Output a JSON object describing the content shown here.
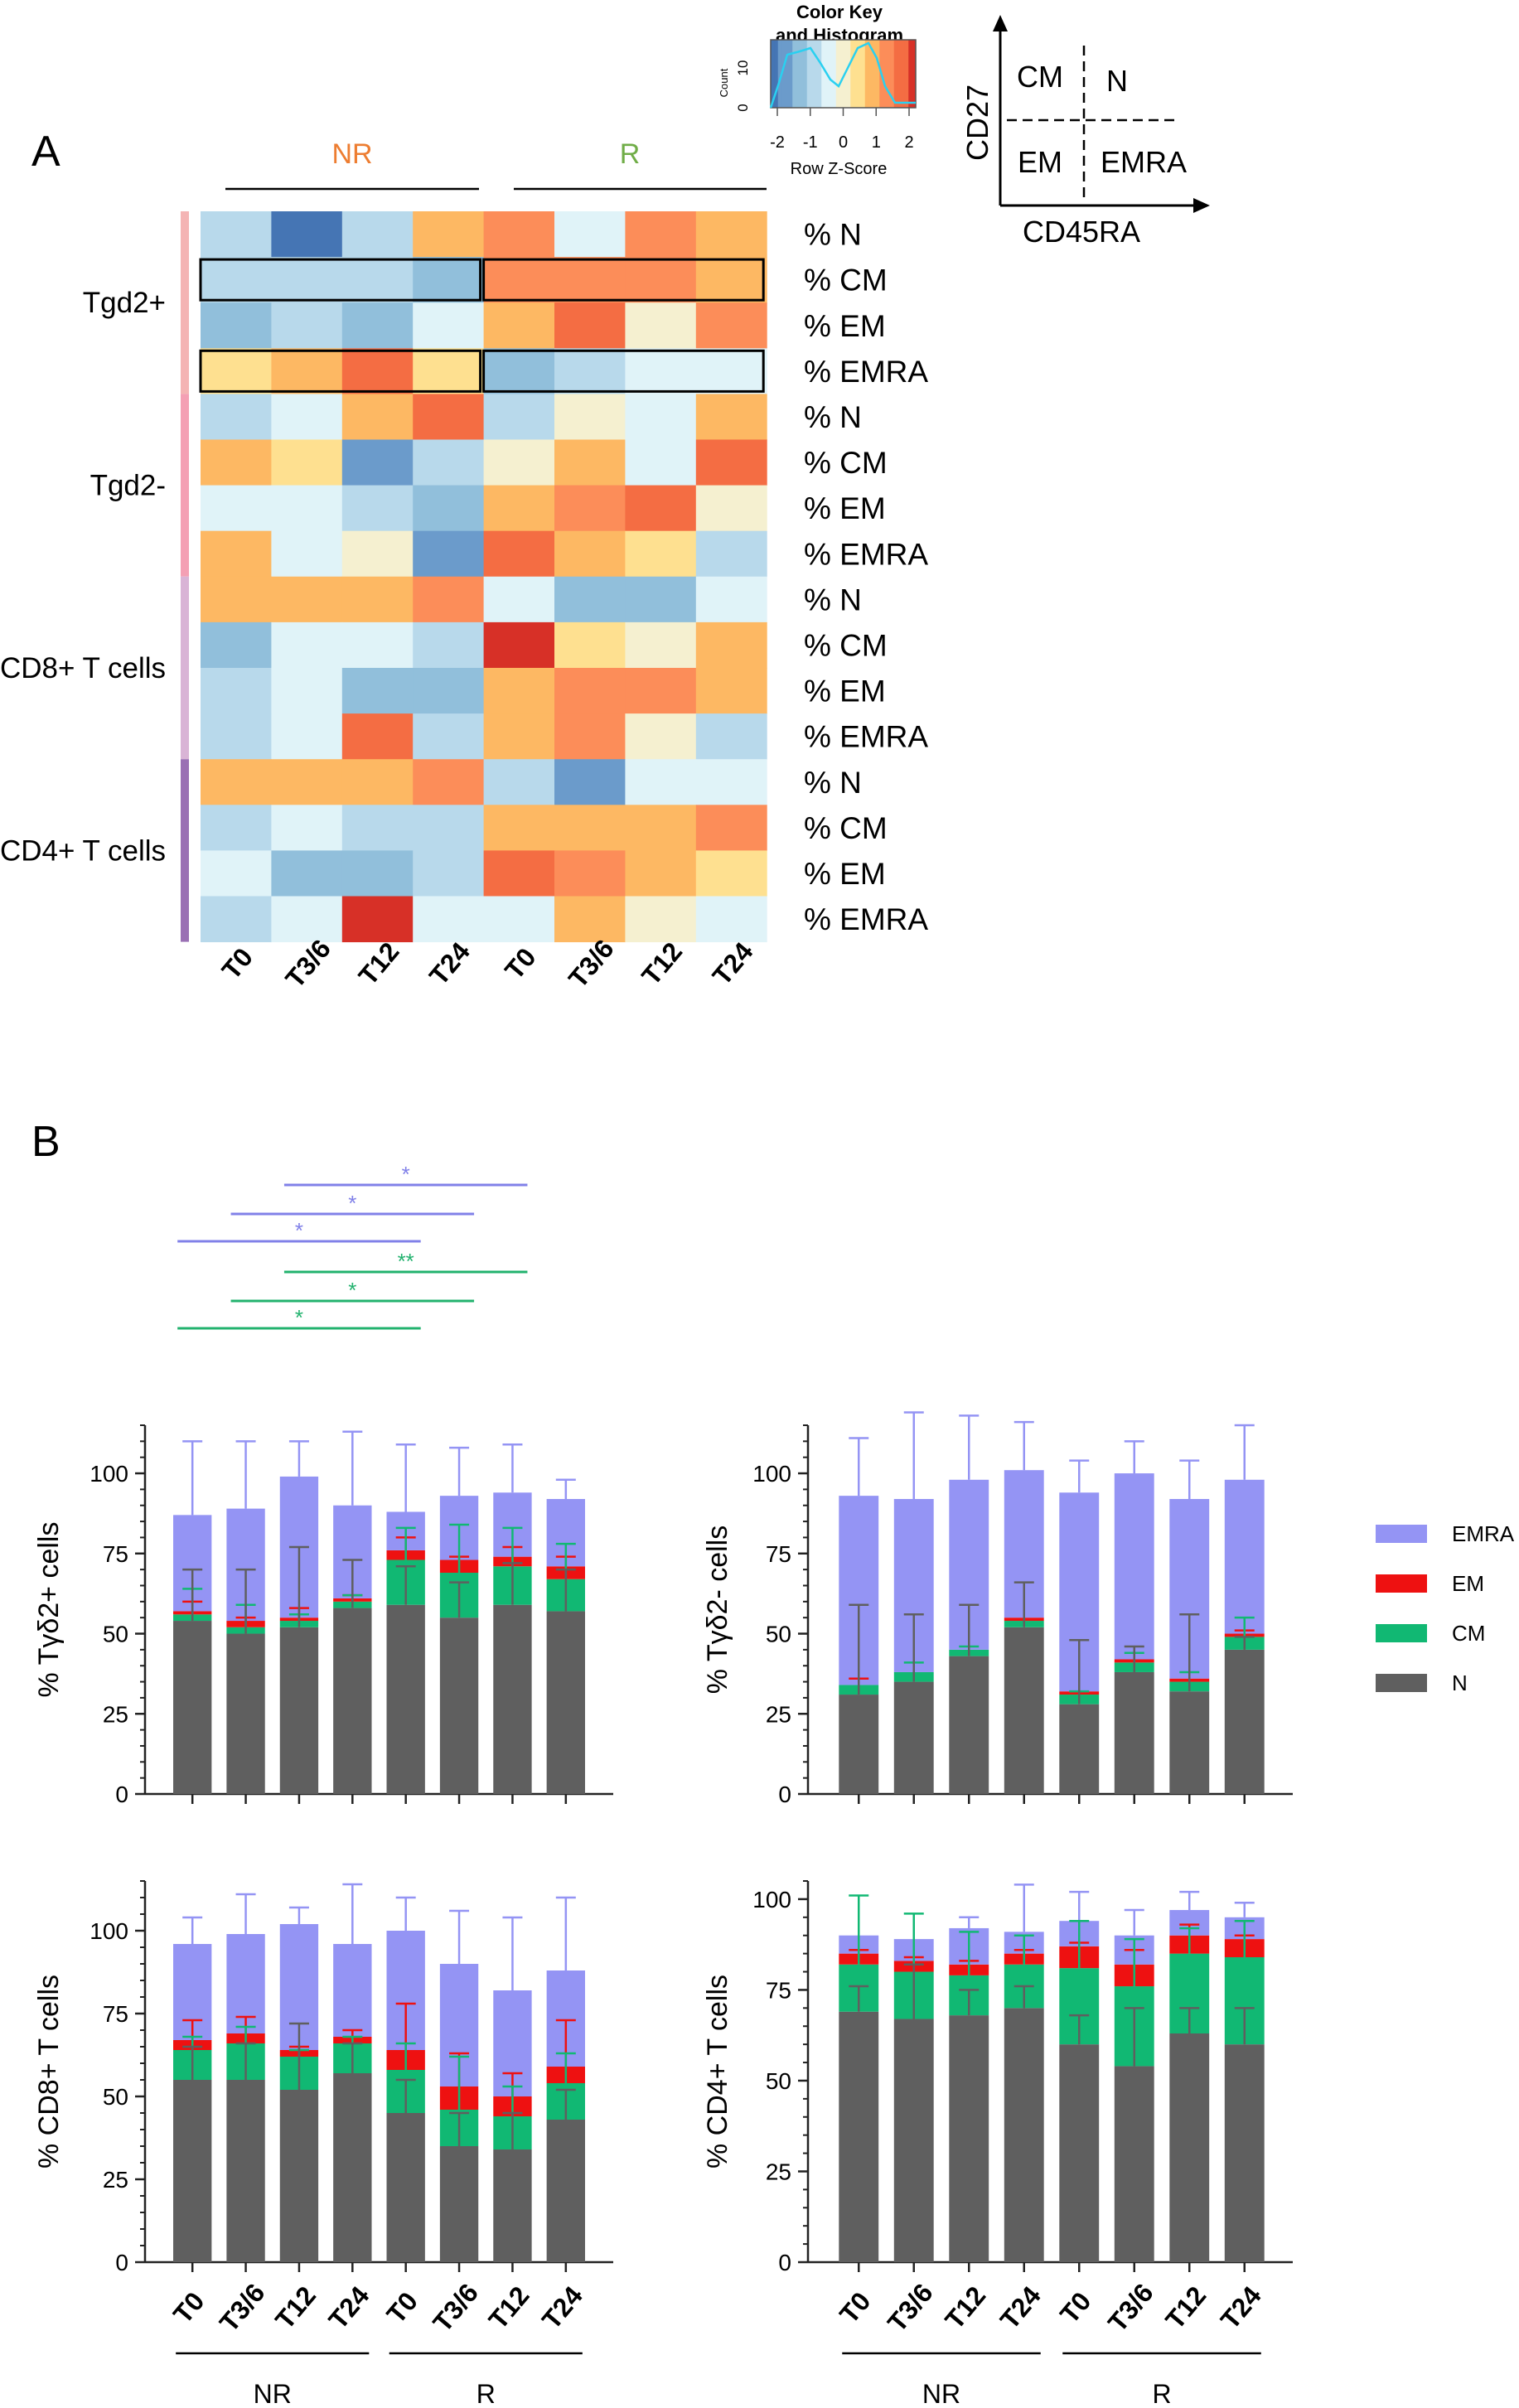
{
  "panel_labels": {
    "a": "A",
    "b": "B"
  },
  "colors": {
    "heat_scale": [
      "#4575b4",
      "#6b9bcb",
      "#91bfdb",
      "#b8d9eb",
      "#e0f3f8",
      "#f5f0d0",
      "#fee090",
      "#fdb863",
      "#fc8d59",
      "#f46d43",
      "#d73027"
    ],
    "EMRA": "#9494f4",
    "EM": "#ee1111",
    "CM": "#11b873",
    "N": "#5f5f5f",
    "nr_label": "#ed7d31",
    "r_label": "#70ad47",
    "sig_emra": "#8080e8",
    "sig_cm": "#22b26e"
  },
  "color_key": {
    "title_line1": "Color Key",
    "title_line2": "and Histogram",
    "count_label": "Count",
    "count_ticks": [
      "0",
      "10"
    ],
    "xlabel": "Row Z-Score",
    "xticks": [
      "-2",
      "-1",
      "0",
      "1",
      "2"
    ]
  },
  "quadrant": {
    "y_axis": "CD27",
    "x_axis": "CD45RA",
    "top_left": "CM",
    "top_right": "N",
    "bottom_left": "EM",
    "bottom_right": "EMRA"
  },
  "heatmap": {
    "group_labels": [
      "NR",
      "R"
    ],
    "columns": [
      "T0",
      "T3/6",
      "T12",
      "T24",
      "T0",
      "T3/6",
      "T12",
      "T24"
    ],
    "row_groups": [
      {
        "label": "Tgd2+",
        "color": "#f4b4b4"
      },
      {
        "label": "Tgd2-",
        "color": "#f4a0b4"
      },
      {
        "label": "CD8+ T cells",
        "color": "#d9b4d6"
      },
      {
        "label": "CD4+ T cells",
        "color": "#9a70b4"
      }
    ],
    "rows": [
      "% N",
      "% CM",
      "% EM",
      "% EMRA",
      "% N",
      "% CM",
      "% EM",
      "% EMRA",
      "% N",
      "% CM",
      "% EM",
      "% EMRA",
      "% N",
      "% CM",
      "% EM",
      "% EMRA"
    ],
    "z": [
      [
        -0.8,
        -1.8,
        -0.8,
        0.7,
        1.2,
        -0.4,
        1.3,
        0.6
      ],
      [
        -0.8,
        -0.8,
        -0.8,
        -1.2,
        1.2,
        1.2,
        1.1,
        0.6
      ],
      [
        -1.1,
        -0.8,
        -1.2,
        -0.4,
        0.6,
        1.7,
        0.1,
        1.0
      ],
      [
        0.3,
        0.9,
        1.7,
        0.3,
        -1.3,
        -0.8,
        -0.6,
        -0.6
      ],
      [
        -0.8,
        -0.4,
        0.7,
        1.7,
        -1.0,
        0.0,
        -0.6,
        0.9
      ],
      [
        0.6,
        0.4,
        -1.6,
        -0.8,
        0.0,
        0.9,
        -0.6,
        1.4
      ],
      [
        -0.6,
        -0.6,
        -0.8,
        -1.3,
        0.9,
        1.2,
        1.5,
        0.1
      ],
      [
        0.8,
        -0.4,
        0.0,
        -1.6,
        1.4,
        0.7,
        0.4,
        -1.0
      ],
      [
        0.8,
        0.8,
        0.7,
        1.1,
        -0.4,
        -1.2,
        -1.2,
        -0.6
      ],
      [
        -1.1,
        -0.4,
        -0.6,
        -0.8,
        2.0,
        0.4,
        0.0,
        0.8
      ],
      [
        -0.8,
        -0.4,
        -1.1,
        -1.1,
        0.9,
        1.1,
        1.1,
        0.6
      ],
      [
        -0.8,
        -0.6,
        1.4,
        -1.0,
        0.7,
        1.2,
        0.0,
        -0.7
      ],
      [
        0.8,
        0.7,
        0.8,
        1.1,
        -0.8,
        -1.6,
        -0.4,
        -0.6
      ],
      [
        -0.8,
        -0.6,
        -1.0,
        -0.8,
        0.9,
        0.9,
        0.9,
        1.2
      ],
      [
        -0.6,
        -1.1,
        -1.1,
        -0.8,
        1.4,
        1.1,
        0.8,
        0.3
      ],
      [
        -1.0,
        -0.6,
        2.0,
        -0.6,
        -0.4,
        0.9,
        0.0,
        -0.4
      ]
    ],
    "boxes": [
      {
        "row": 1,
        "c0": 0,
        "c1": 3
      },
      {
        "row": 1,
        "c0": 4,
        "c1": 7
      },
      {
        "row": 3,
        "c0": 0,
        "c1": 3
      },
      {
        "row": 3,
        "c0": 4,
        "c1": 7
      }
    ]
  },
  "significance": [
    {
      "from": 2,
      "to": 6,
      "label": "*",
      "type": "EMRA"
    },
    {
      "from": 1,
      "to": 5,
      "label": "*",
      "type": "EMRA"
    },
    {
      "from": 0,
      "to": 4,
      "label": "*",
      "type": "EMRA"
    },
    {
      "from": 2,
      "to": 6,
      "label": "**",
      "type": "CM"
    },
    {
      "from": 1,
      "to": 5,
      "label": "*",
      "type": "CM"
    },
    {
      "from": 0,
      "to": 4,
      "label": "*",
      "type": "CM"
    }
  ],
  "legend": [
    "EMRA",
    "EM",
    "CM",
    "N"
  ],
  "group_labels_bottom": [
    "NR",
    "R"
  ],
  "chart_data": [
    {
      "type": "bar",
      "stacked": true,
      "ylabel": "% Tγδ2+ cells",
      "categories": [
        "T0",
        "T3/6",
        "T12",
        "T24",
        "T0",
        "T3/6",
        "T12",
        "T24"
      ],
      "yticks": [
        0,
        25,
        50,
        75,
        100
      ],
      "ylim": [
        0,
        115
      ],
      "series": [
        {
          "name": "N",
          "values": [
            54,
            50,
            52,
            58,
            59,
            55,
            59,
            57
          ],
          "err": [
            16,
            20,
            25,
            15,
            12,
            11,
            13,
            13
          ]
        },
        {
          "name": "CM",
          "values": [
            2,
            2,
            2,
            2,
            14,
            14,
            12,
            10
          ],
          "err": [
            8,
            7,
            2,
            2,
            10,
            15,
            12,
            11
          ]
        },
        {
          "name": "EM",
          "values": [
            1,
            2,
            1,
            1,
            3,
            4,
            3,
            4
          ],
          "err": [
            3,
            1,
            3,
            1,
            4,
            1,
            3,
            3
          ]
        },
        {
          "name": "EMRA",
          "values": [
            30,
            35,
            44,
            29,
            12,
            20,
            20,
            21
          ],
          "err": [
            23,
            21,
            11,
            23,
            21,
            15,
            15,
            6
          ]
        }
      ]
    },
    {
      "type": "bar",
      "stacked": true,
      "ylabel": "% Tγδ2- cells",
      "categories": [
        "T0",
        "T3/6",
        "T12",
        "T24",
        "T0",
        "T3/6",
        "T12",
        "T24"
      ],
      "yticks": [
        0,
        25,
        50,
        75,
        100
      ],
      "ylim": [
        0,
        115
      ],
      "series": [
        {
          "name": "N",
          "values": [
            31,
            35,
            43,
            52,
            28,
            38,
            32,
            45
          ],
          "err": [
            28,
            21,
            16,
            14,
            20,
            8,
            24,
            4
          ]
        },
        {
          "name": "CM",
          "values": [
            3,
            3,
            2,
            2,
            3,
            3,
            3,
            4
          ],
          "err": [
            0,
            3,
            1,
            0,
            1,
            3,
            3,
            6
          ]
        },
        {
          "name": "EM",
          "values": [
            0,
            0,
            0,
            1,
            1,
            1,
            1,
            1
          ],
          "err": [
            2,
            0,
            0,
            0,
            0,
            0,
            0,
            1
          ]
        },
        {
          "name": "EMRA",
          "values": [
            59,
            54,
            53,
            46,
            62,
            58,
            56,
            48
          ],
          "err": [
            18,
            27,
            20,
            15,
            10,
            10,
            12,
            17
          ]
        }
      ]
    },
    {
      "type": "bar",
      "stacked": true,
      "ylabel": "% CD8+ T cells",
      "categories": [
        "T0",
        "T3/6",
        "T12",
        "T24",
        "T0",
        "T3/6",
        "T12",
        "T24"
      ],
      "yticks": [
        0,
        25,
        50,
        75,
        100
      ],
      "ylim": [
        0,
        115
      ],
      "series": [
        {
          "name": "N",
          "values": [
            55,
            55,
            52,
            57,
            45,
            35,
            34,
            43
          ],
          "err": [
            10,
            11,
            20,
            9,
            10,
            10,
            11,
            9
          ]
        },
        {
          "name": "CM",
          "values": [
            9,
            11,
            10,
            9,
            13,
            11,
            10,
            11
          ],
          "err": [
            4,
            5,
            2,
            2,
            8,
            16,
            9,
            9
          ]
        },
        {
          "name": "EM",
          "values": [
            3,
            3,
            2,
            2,
            6,
            7,
            6,
            5
          ],
          "err": [
            6,
            5,
            1,
            2,
            14,
            10,
            7,
            14
          ]
        },
        {
          "name": "EMRA",
          "values": [
            29,
            30,
            38,
            28,
            36,
            37,
            32,
            29
          ],
          "err": [
            8,
            12,
            5,
            18,
            10,
            16,
            22,
            22
          ]
        }
      ]
    },
    {
      "type": "bar",
      "stacked": true,
      "ylabel": "% CD4+ T cells",
      "categories": [
        "T0",
        "T3/6",
        "T12",
        "T24",
        "T0",
        "T3/6",
        "T12",
        "T24"
      ],
      "yticks": [
        0,
        25,
        50,
        75,
        100
      ],
      "ylim": [
        0,
        105
      ],
      "series": [
        {
          "name": "N",
          "values": [
            69,
            67,
            68,
            70,
            60,
            54,
            63,
            60
          ],
          "err": [
            7,
            15,
            7,
            6,
            8,
            16,
            7,
            10
          ]
        },
        {
          "name": "CM",
          "values": [
            13,
            13,
            11,
            12,
            21,
            22,
            22,
            24
          ],
          "err": [
            19,
            16,
            12,
            8,
            13,
            13,
            7,
            10
          ]
        },
        {
          "name": "EM",
          "values": [
            3,
            3,
            3,
            3,
            6,
            6,
            5,
            5
          ],
          "err": [
            1,
            1,
            1,
            1,
            1,
            4,
            3,
            1
          ]
        },
        {
          "name": "EMRA",
          "values": [
            5,
            6,
            10,
            6,
            7,
            8,
            7,
            6
          ],
          "err": [
            0,
            0,
            3,
            13,
            8,
            7,
            5,
            4
          ]
        }
      ]
    }
  ]
}
